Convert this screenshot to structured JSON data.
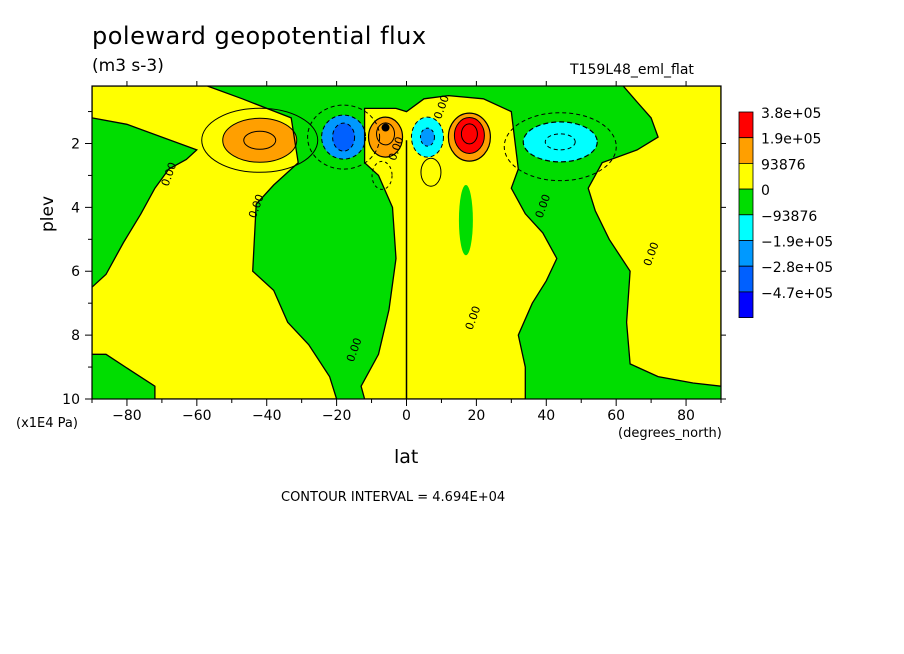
{
  "chart_data": {
    "type": "heatmap",
    "title": "poleward geopotential flux",
    "units": "(m3 s-3)",
    "run_label": "T159L48_eml_flat",
    "xlabel": "lat",
    "xunits": "(degrees_north)",
    "ylabel": "plev",
    "yunits": "(x1E4 Pa)",
    "xlim": [
      -90,
      90
    ],
    "ylim": [
      10,
      0.2
    ],
    "x_ticks": [
      -80,
      -60,
      -40,
      -20,
      0,
      20,
      40,
      60,
      80
    ],
    "y_ticks": [
      2,
      4,
      6,
      8,
      10
    ],
    "contour_interval": "CONTOUR INTERVAL = 4.694E+04",
    "contour_labels": [
      "0.00",
      "0.00",
      "0.00",
      "0.00",
      "0.00",
      "0.00",
      "0.00",
      "0.00"
    ],
    "legend": {
      "position": "right",
      "levels": [
        "3.8e+05",
        "1.9e+05",
        "93876",
        "0",
        "-93876",
        "-1.9e+05",
        "-2.8e+05",
        "-4.7e+05"
      ],
      "colors": [
        "#ff0000",
        "#ff9f00",
        "#ffff00",
        "#00dd00",
        "#00ffff",
        "#0099ff",
        "#0060ff",
        "#0000ff"
      ]
    },
    "background_color": "#00dd00",
    "positive_regions": [
      {
        "name": "outer-yellow-sh",
        "color": "#ffff00",
        "lat": [
          -90,
          -30
        ],
        "plev": [
          0.2,
          10
        ]
      },
      {
        "name": "sh-mid-max",
        "color": "#ff9f00",
        "lat_center": -42,
        "plev_center": 1.9
      },
      {
        "name": "eq-max-sh",
        "color": "#ff9f00",
        "lat_center": -6,
        "plev_center": 1.8
      },
      {
        "name": "nh-strong-max",
        "color": "#ff0000",
        "lat_center": 18,
        "plev_center": 1.8
      },
      {
        "name": "eq-yellow",
        "color": "#ffff00",
        "lat": [
          -12,
          32
        ],
        "plev": [
          0.2,
          10
        ]
      },
      {
        "name": "outer-yellow-nh",
        "color": "#ffff00",
        "lat": [
          62,
          90
        ],
        "plev": [
          0.2,
          10
        ]
      }
    ],
    "negative_regions": [
      {
        "name": "sh-min",
        "color": "#0060ff",
        "lat_center": -18,
        "plev_center": 1.8
      },
      {
        "name": "eq-min",
        "color": "#00ffff",
        "lat_center": 6,
        "plev_center": 1.8
      },
      {
        "name": "nh-mid-min",
        "color": "#00ffff",
        "lat_center": 44,
        "plev_center": 1.9
      }
    ]
  }
}
